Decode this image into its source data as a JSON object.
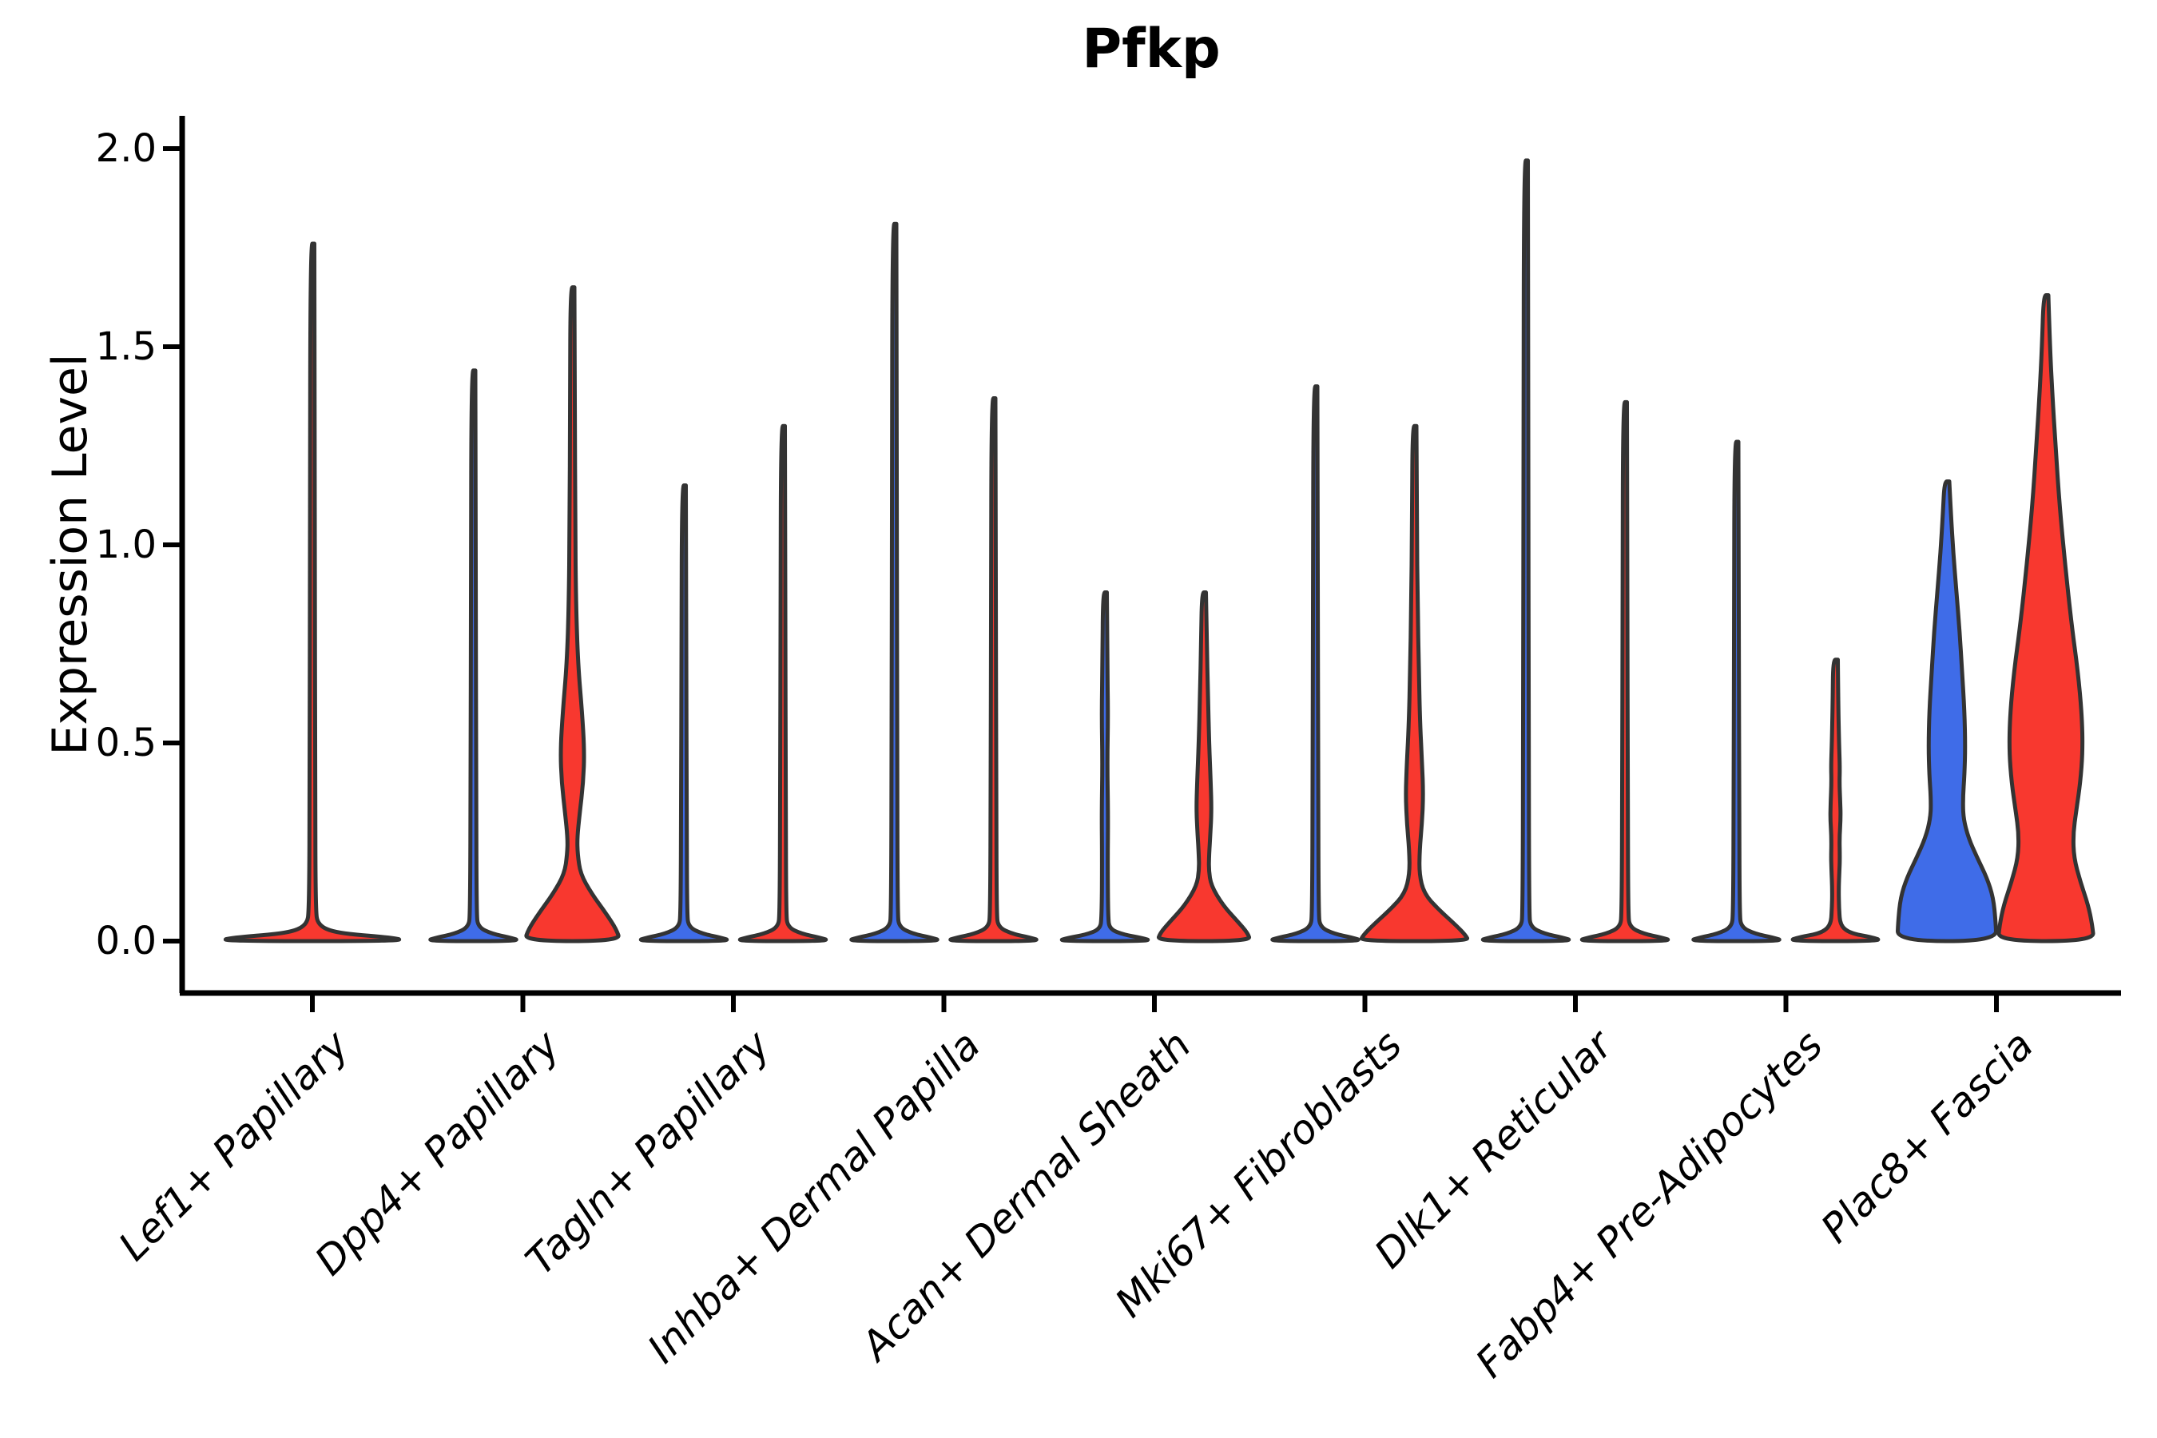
{
  "title": "Pfkp",
  "y_axis": {
    "label": "Expression Level",
    "ticks": [
      "2.0",
      "1.5",
      "1.0",
      "0.5",
      "0.0"
    ],
    "tick_values": [
      2.0,
      1.5,
      1.0,
      0.5,
      0.0
    ]
  },
  "x_axis": {
    "categories": [
      "Lef1+ Papillary",
      "Dpp4+ Papillary",
      "Tagln+ Papillary",
      "Inhba+ Dermal Papilla",
      "Acan+ Dermal Sheath",
      "Mki67+ Fibroblasts",
      "Dlk1+ Reticular",
      "Fabp4+ Pre-Adipocytes",
      "Plac8+ Fascia"
    ]
  },
  "colors": {
    "condition_blue": "#3f6ce8",
    "condition_red": "#f8382f",
    "edge": "#333333",
    "axis": "#000000"
  },
  "chart_data": {
    "type": "violin",
    "title": "Pfkp",
    "ylabel": "Expression Level",
    "ylim": [
      0,
      2.08
    ],
    "grid": false,
    "legend": "none",
    "categories": [
      "Lef1+ Papillary",
      "Dpp4+ Papillary",
      "Tagln+ Papillary",
      "Inhba+ Dermal Papilla",
      "Acan+ Dermal Sheath",
      "Mki67+ Fibroblasts",
      "Dlk1+ Reticular",
      "Fabp4+ Pre-Adipocytes",
      "Plac8+ Fascia"
    ],
    "violins": [
      {
        "category_index": 0,
        "category": "Lef1+ Papillary",
        "side": "single",
        "condition": "red",
        "fill": "#f8382f",
        "max": 1.76,
        "profile": [
          [
            1.76,
            2.5
          ],
          [
            1.0,
            3
          ],
          [
            0.4,
            3.5
          ],
          [
            0.08,
            4
          ],
          [
            0.04,
            7
          ],
          [
            0.02,
            30
          ],
          [
            0.01,
            95
          ],
          [
            0,
            120
          ]
        ]
      },
      {
        "category_index": 1,
        "category": "Dpp4+ Papillary",
        "side": "left",
        "condition": "blue",
        "fill": "#3f6ce8",
        "max": 1.44,
        "profile": [
          [
            1.44,
            2.5
          ],
          [
            0.86,
            3
          ],
          [
            0.43,
            3.5
          ],
          [
            0.07,
            4
          ],
          [
            0.035,
            6
          ],
          [
            0.018,
            24
          ],
          [
            0.009,
            46
          ],
          [
            0,
            60
          ]
        ]
      },
      {
        "category_index": 1,
        "category": "Dpp4+ Papillary",
        "side": "right",
        "condition": "red",
        "fill": "#f8382f",
        "max": 1.65,
        "profile": [
          [
            1.65,
            2.5
          ],
          [
            1.35,
            3
          ],
          [
            1.05,
            3.5
          ],
          [
            0.85,
            4.5
          ],
          [
            0.7,
            7
          ],
          [
            0.58,
            12
          ],
          [
            0.48,
            15
          ],
          [
            0.4,
            13.5
          ],
          [
            0.32,
            9
          ],
          [
            0.26,
            6
          ],
          [
            0.22,
            6.5
          ],
          [
            0.17,
            10
          ],
          [
            0.12,
            24
          ],
          [
            0.07,
            42
          ],
          [
            0.03,
            55
          ],
          [
            0,
            60
          ]
        ]
      },
      {
        "category_index": 2,
        "category": "Tagln+ Papillary",
        "side": "left",
        "condition": "blue",
        "fill": "#3f6ce8",
        "max": 1.15,
        "profile": [
          [
            1.15,
            2.5
          ],
          [
            0.69,
            3
          ],
          [
            0.35,
            3.5
          ],
          [
            0.07,
            4
          ],
          [
            0.035,
            6
          ],
          [
            0.018,
            24
          ],
          [
            0.009,
            46
          ],
          [
            0,
            60
          ]
        ]
      },
      {
        "category_index": 2,
        "category": "Tagln+ Papillary",
        "side": "right",
        "condition": "red",
        "fill": "#f8382f",
        "max": 1.3,
        "profile": [
          [
            1.3,
            2.5
          ],
          [
            0.78,
            3
          ],
          [
            0.39,
            3.5
          ],
          [
            0.07,
            4
          ],
          [
            0.035,
            6
          ],
          [
            0.018,
            24
          ],
          [
            0.009,
            46
          ],
          [
            0,
            60
          ]
        ]
      },
      {
        "category_index": 3,
        "category": "Inhba+ Dermal Papilla",
        "side": "left",
        "condition": "blue",
        "fill": "#3f6ce8",
        "max": 1.81,
        "profile": [
          [
            1.81,
            2.5
          ],
          [
            1.09,
            3
          ],
          [
            0.54,
            3.5
          ],
          [
            0.07,
            4
          ],
          [
            0.035,
            6
          ],
          [
            0.018,
            24
          ],
          [
            0.009,
            46
          ],
          [
            0,
            60
          ]
        ]
      },
      {
        "category_index": 3,
        "category": "Inhba+ Dermal Papilla",
        "side": "right",
        "condition": "red",
        "fill": "#f8382f",
        "max": 1.37,
        "profile": [
          [
            1.37,
            2.5
          ],
          [
            0.82,
            3
          ],
          [
            0.41,
            3.5
          ],
          [
            0.07,
            4
          ],
          [
            0.035,
            6
          ],
          [
            0.018,
            24
          ],
          [
            0.009,
            46
          ],
          [
            0,
            60
          ]
        ]
      },
      {
        "category_index": 4,
        "category": "Acan+ Dermal Sheath",
        "side": "left",
        "condition": "blue",
        "fill": "#3f6ce8",
        "max": 0.88,
        "profile": [
          [
            0.88,
            2.5
          ],
          [
            0.7,
            3
          ],
          [
            0.57,
            4
          ],
          [
            0.45,
            3
          ],
          [
            0.32,
            4
          ],
          [
            0.2,
            3.5
          ],
          [
            0.06,
            4
          ],
          [
            0.03,
            6
          ],
          [
            0.016,
            24
          ],
          [
            0.008,
            46
          ],
          [
            0,
            60
          ]
        ]
      },
      {
        "category_index": 4,
        "category": "Acan+ Dermal Sheath",
        "side": "right",
        "condition": "red",
        "fill": "#f8382f",
        "max": 0.88,
        "profile": [
          [
            0.88,
            2.5
          ],
          [
            0.76,
            3.5
          ],
          [
            0.62,
            5
          ],
          [
            0.5,
            6.5
          ],
          [
            0.4,
            8.5
          ],
          [
            0.33,
            9.5
          ],
          [
            0.27,
            8
          ],
          [
            0.22,
            6.5
          ],
          [
            0.18,
            6
          ],
          [
            0.14,
            9
          ],
          [
            0.09,
            24
          ],
          [
            0.05,
            42
          ],
          [
            0.02,
            55
          ],
          [
            0,
            58
          ]
        ]
      },
      {
        "category_index": 5,
        "category": "Mki67+ Fibroblasts",
        "side": "left",
        "condition": "blue",
        "fill": "#3f6ce8",
        "max": 1.4,
        "profile": [
          [
            1.4,
            2.5
          ],
          [
            0.84,
            3
          ],
          [
            0.42,
            3.5
          ],
          [
            0.07,
            4
          ],
          [
            0.035,
            6
          ],
          [
            0.018,
            24
          ],
          [
            0.009,
            46
          ],
          [
            0,
            60
          ]
        ]
      },
      {
        "category_index": 5,
        "category": "Mki67+ Fibroblasts",
        "side": "right",
        "condition": "red",
        "fill": "#f8382f",
        "max": 1.3,
        "profile": [
          [
            1.3,
            2.5
          ],
          [
            1.05,
            3
          ],
          [
            0.85,
            4
          ],
          [
            0.68,
            5.5
          ],
          [
            0.55,
            7
          ],
          [
            0.45,
            9.5
          ],
          [
            0.37,
            11
          ],
          [
            0.3,
            9.5
          ],
          [
            0.23,
            6.5
          ],
          [
            0.17,
            6
          ],
          [
            0.12,
            12
          ],
          [
            0.08,
            30
          ],
          [
            0.04,
            52
          ],
          [
            0.015,
            64
          ],
          [
            0,
            68
          ]
        ]
      },
      {
        "category_index": 6,
        "category": "Dlk1+ Reticular",
        "side": "left",
        "condition": "blue",
        "fill": "#3f6ce8",
        "max": 1.97,
        "profile": [
          [
            1.97,
            2.5
          ],
          [
            1.18,
            3
          ],
          [
            0.59,
            3.5
          ],
          [
            0.07,
            4
          ],
          [
            0.035,
            6
          ],
          [
            0.018,
            24
          ],
          [
            0.009,
            46
          ],
          [
            0,
            60
          ]
        ]
      },
      {
        "category_index": 6,
        "category": "Dlk1+ Reticular",
        "side": "right",
        "condition": "red",
        "fill": "#f8382f",
        "max": 1.36,
        "profile": [
          [
            1.36,
            2.5
          ],
          [
            0.82,
            3
          ],
          [
            0.41,
            3.5
          ],
          [
            0.07,
            4
          ],
          [
            0.035,
            6
          ],
          [
            0.018,
            24
          ],
          [
            0.009,
            46
          ],
          [
            0,
            60
          ]
        ]
      },
      {
        "category_index": 7,
        "category": "Fabp4+ Pre-Adipocytes",
        "side": "left",
        "condition": "blue",
        "fill": "#3f6ce8",
        "max": 1.26,
        "profile": [
          [
            1.26,
            2.5
          ],
          [
            0.76,
            3
          ],
          [
            0.38,
            3.5
          ],
          [
            0.07,
            4
          ],
          [
            0.035,
            6
          ],
          [
            0.018,
            24
          ],
          [
            0.009,
            46
          ],
          [
            0,
            60
          ]
        ]
      },
      {
        "category_index": 7,
        "category": "Fabp4+ Pre-Adipocytes",
        "side": "right",
        "condition": "red",
        "fill": "#f8382f",
        "max": 0.71,
        "profile": [
          [
            0.71,
            3
          ],
          [
            0.6,
            3.5
          ],
          [
            0.5,
            4.5
          ],
          [
            0.44,
            5.5
          ],
          [
            0.4,
            5
          ],
          [
            0.35,
            6
          ],
          [
            0.31,
            6.5
          ],
          [
            0.26,
            5
          ],
          [
            0.21,
            5.5
          ],
          [
            0.18,
            5
          ],
          [
            0.13,
            4
          ],
          [
            0.08,
            4.5
          ],
          [
            0.04,
            6
          ],
          [
            0.02,
            18
          ],
          [
            0.01,
            45
          ],
          [
            0,
            60
          ]
        ]
      },
      {
        "category_index": 8,
        "category": "Plac8+ Fascia",
        "side": "left",
        "condition": "blue",
        "fill": "#3f6ce8",
        "max": 1.16,
        "profile": [
          [
            1.16,
            3
          ],
          [
            1.08,
            5
          ],
          [
            0.98,
            8
          ],
          [
            0.88,
            12
          ],
          [
            0.78,
            16
          ],
          [
            0.68,
            19
          ],
          [
            0.58,
            22
          ],
          [
            0.49,
            23
          ],
          [
            0.42,
            22
          ],
          [
            0.36,
            20
          ],
          [
            0.31,
            20.5
          ],
          [
            0.26,
            27
          ],
          [
            0.21,
            38
          ],
          [
            0.16,
            50
          ],
          [
            0.11,
            58
          ],
          [
            0.05,
            61
          ],
          [
            0,
            62
          ]
        ]
      },
      {
        "category_index": 8,
        "category": "Plac8+ Fascia",
        "side": "right",
        "condition": "red",
        "fill": "#f8382f",
        "max": 1.63,
        "profile": [
          [
            1.63,
            3
          ],
          [
            1.5,
            5
          ],
          [
            1.38,
            8
          ],
          [
            1.25,
            12
          ],
          [
            1.1,
            17
          ],
          [
            0.95,
            24
          ],
          [
            0.8,
            32
          ],
          [
            0.68,
            40
          ],
          [
            0.57,
            45
          ],
          [
            0.48,
            46
          ],
          [
            0.4,
            43
          ],
          [
            0.33,
            38
          ],
          [
            0.27,
            34
          ],
          [
            0.21,
            35
          ],
          [
            0.15,
            43
          ],
          [
            0.09,
            53
          ],
          [
            0.04,
            58
          ],
          [
            0,
            60
          ]
        ]
      }
    ]
  }
}
